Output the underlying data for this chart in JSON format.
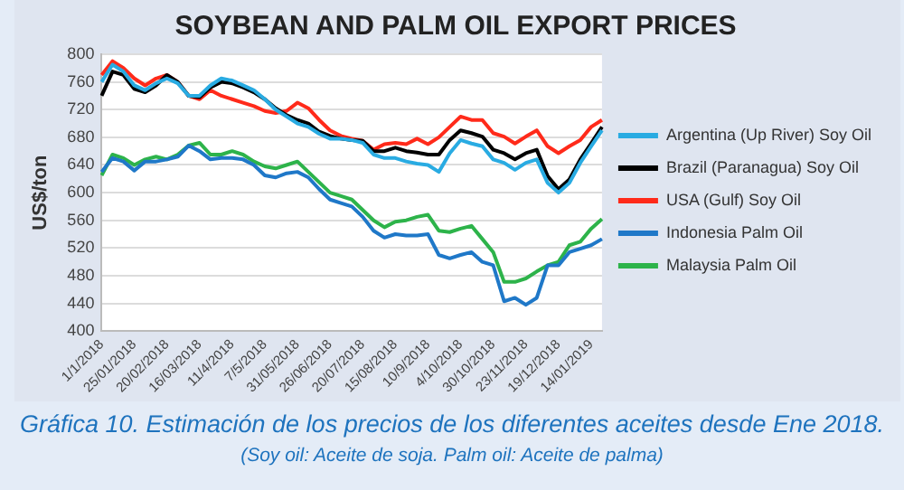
{
  "chart_data": {
    "type": "line",
    "title": "SOYBEAN AND PALM OIL EXPORT PRICES",
    "ylabel": "US$/ton",
    "categories": [
      "1/1/2018",
      null,
      null,
      "25/01/2018",
      null,
      null,
      "20/02/2018",
      null,
      null,
      "16/03/2018",
      null,
      null,
      "11/4/2018",
      null,
      null,
      "7/5/2018",
      null,
      null,
      "31/05/2018",
      null,
      null,
      "26/06/2018",
      null,
      null,
      "20/07/2018",
      null,
      null,
      "15/08/2018",
      null,
      null,
      "10/9/2018",
      null,
      null,
      "4/10/2018",
      null,
      null,
      "30/10/2018",
      null,
      null,
      "23/11/2018",
      null,
      null,
      "19/12/2018",
      null,
      null,
      "14/01/2019",
      null
    ],
    "series": [
      {
        "name": "Argentina (Up River) Soy Oil",
        "color": "#29abe2",
        "values": [
          760,
          785,
          775,
          755,
          748,
          758,
          765,
          758,
          740,
          740,
          755,
          765,
          762,
          755,
          748,
          735,
          720,
          710,
          700,
          695,
          685,
          678,
          678,
          676,
          672,
          655,
          650,
          650,
          645,
          642,
          640,
          630,
          657,
          676,
          671,
          667,
          648,
          643,
          633,
          643,
          648,
          614,
          600,
          614,
          643,
          667,
          690
        ]
      },
      {
        "name": "Brazil (Paranagua) Soy Oil",
        "color": "#000000",
        "values": [
          740,
          775,
          770,
          750,
          745,
          755,
          770,
          760,
          740,
          738,
          752,
          760,
          758,
          752,
          745,
          735,
          722,
          712,
          705,
          700,
          688,
          682,
          678,
          676,
          675,
          660,
          660,
          665,
          660,
          658,
          655,
          655,
          676,
          690,
          686,
          681,
          662,
          657,
          648,
          657,
          662,
          624,
          605,
          619,
          648,
          671,
          695
        ]
      },
      {
        "name": "USA (Gulf) Soy Oil",
        "color": "#ff2a1a",
        "values": [
          770,
          790,
          780,
          765,
          755,
          765,
          770,
          760,
          740,
          735,
          748,
          740,
          735,
          730,
          725,
          718,
          715,
          718,
          730,
          722,
          705,
          690,
          682,
          678,
          675,
          662,
          670,
          672,
          670,
          678,
          670,
          680,
          695,
          710,
          705,
          705,
          686,
          681,
          671,
          681,
          690,
          667,
          657,
          667,
          676,
          695,
          705
        ]
      },
      {
        "name": "Indonesia Palm Oil",
        "color": "#1f78c8",
        "values": [
          630,
          650,
          645,
          632,
          645,
          645,
          648,
          652,
          668,
          660,
          648,
          650,
          650,
          648,
          640,
          625,
          622,
          628,
          630,
          622,
          605,
          590,
          585,
          580,
          565,
          545,
          535,
          540,
          538,
          538,
          540,
          510,
          505,
          510,
          514,
          500,
          495,
          443,
          448,
          438,
          448,
          495,
          495,
          514,
          519,
          524,
          533
        ]
      },
      {
        "name": "Malaysia Palm Oil",
        "color": "#2db34a",
        "values": [
          625,
          655,
          650,
          640,
          648,
          652,
          648,
          655,
          668,
          672,
          655,
          655,
          660,
          655,
          645,
          638,
          635,
          640,
          645,
          630,
          615,
          600,
          595,
          590,
          575,
          560,
          550,
          558,
          560,
          565,
          568,
          545,
          543,
          548,
          552,
          533,
          514,
          471,
          471,
          476,
          486,
          495,
          500,
          524,
          529,
          548,
          562
        ]
      }
    ],
    "ylim": [
      400,
      800
    ],
    "yticks": [
      400,
      440,
      480,
      520,
      560,
      600,
      640,
      680,
      720,
      760,
      800
    ],
    "grid": "y",
    "legend": "right",
    "marker": "none",
    "line_style": "solid",
    "annotations": [
      "Gráfica 10. Estimación de los precios de los diferentes aceites desde Ene 2018.",
      "(Soy oil: Aceite de soja. Palm oil: Aceite de palma)"
    ]
  }
}
